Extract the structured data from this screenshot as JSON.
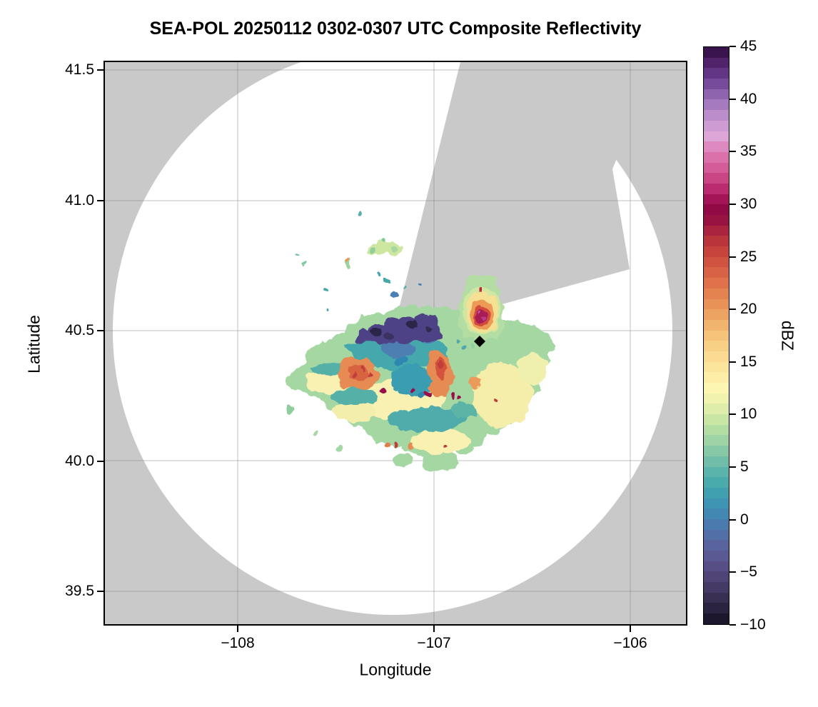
{
  "title": "SEA-POL 20250112 0302-0307 UTC Composite Reflectivity",
  "axes": {
    "xlabel": "Longitude",
    "ylabel": "Latitude",
    "xticks": [
      {
        "v": -108,
        "label": "−108"
      },
      {
        "v": -107,
        "label": "−107"
      },
      {
        "v": -106,
        "label": "−106"
      }
    ],
    "yticks": [
      {
        "v": 41.5,
        "label": "41.5"
      },
      {
        "v": 41.0,
        "label": "41.0"
      },
      {
        "v": 40.5,
        "label": "40.5"
      },
      {
        "v": 40.0,
        "label": "40.0"
      },
      {
        "v": 39.5,
        "label": "39.5"
      }
    ],
    "xlim": [
      -108.69,
      -105.69
    ],
    "ylim": [
      39.37,
      41.54
    ],
    "grid": true
  },
  "colorbar": {
    "label": "dBZ",
    "vmin": -10,
    "vmax": 45,
    "band_step": 1,
    "ticks": [
      {
        "v": 45,
        "label": "45"
      },
      {
        "v": 40,
        "label": "40"
      },
      {
        "v": 35,
        "label": "35"
      },
      {
        "v": 30,
        "label": "30"
      },
      {
        "v": 25,
        "label": "25"
      },
      {
        "v": 20,
        "label": "20"
      },
      {
        "v": 15,
        "label": "15"
      },
      {
        "v": 10,
        "label": "10"
      },
      {
        "v": 5,
        "label": "5"
      },
      {
        "v": 0,
        "label": "0"
      },
      {
        "v": -5,
        "label": "−5"
      },
      {
        "v": -10,
        "label": "−10"
      }
    ],
    "anchors": [
      [
        45,
        "#2d0d3c"
      ],
      [
        44,
        "#471a5e"
      ],
      [
        42,
        "#6b3e92"
      ],
      [
        40,
        "#9a70b8"
      ],
      [
        38,
        "#c697d0"
      ],
      [
        36.5,
        "#dda6d6"
      ],
      [
        35,
        "#de7bb4"
      ],
      [
        33,
        "#d0518e"
      ],
      [
        31,
        "#b22064"
      ],
      [
        30,
        "#96094a"
      ],
      [
        29,
        "#8c0a42"
      ],
      [
        28,
        "#a31c40"
      ],
      [
        26,
        "#c13c3a"
      ],
      [
        24,
        "#d55a43"
      ],
      [
        22,
        "#e27a4c"
      ],
      [
        20,
        "#eb9a5c"
      ],
      [
        18,
        "#f3bc74"
      ],
      [
        16,
        "#f9d68b"
      ],
      [
        14,
        "#fc(e)aa2"
      ],
      [
        12.5,
        "#fdf6b2"
      ],
      [
        11,
        "#e8f1ac"
      ],
      [
        9,
        "#bfe2a2"
      ],
      [
        7,
        "#93cea6"
      ],
      [
        5,
        "#64b9aa"
      ],
      [
        3,
        "#41a6ae"
      ],
      [
        1,
        "#3e8eb4"
      ],
      [
        -1,
        "#4f74ac"
      ],
      [
        -3,
        "#5c5f9a"
      ],
      [
        -5,
        "#55487e"
      ],
      [
        -7,
        "#3f355c"
      ],
      [
        -9,
        "#241e38"
      ],
      [
        -10,
        "#14101f"
      ]
    ],
    "no_data_color": "#c9c9c9"
  },
  "chart_data": {
    "type": "heatmap",
    "title": "SEA-POL 20250112 0302-0307 UTC Composite Reflectivity",
    "xlabel": "Longitude",
    "ylabel": "Latitude",
    "xlim": [
      -108.69,
      -105.69
    ],
    "ylim": [
      39.37,
      41.54
    ],
    "units": "dBZ",
    "value_range": [
      -10,
      45
    ],
    "radar": {
      "name": "SEA-POL",
      "center_lon": -107.2,
      "center_lat": 40.49,
      "range_lon_deg": 1.43,
      "range_lat_deg": 1.08,
      "blocked_sector_azimuth_deg": [
        13,
        53
      ],
      "no_data_shading": "gray outside range ring and inside blocked sector",
      "clear_air": "white inside range ring"
    },
    "features": [
      {
        "name": "main-precip-area",
        "lon_range": [
          -107.76,
          -106.4
        ],
        "lat_range": [
          40.08,
          40.56
        ],
        "typical_dbz": 10,
        "max_dbz": 30,
        "notes": "broad stratiform region, mostly 8-18 dBZ greens/yellows with teal 2-6 dBZ core band"
      },
      {
        "name": "low-dbz-arc",
        "lon_center": -107.1,
        "lat_center": 40.47,
        "typical_dbz": -4,
        "notes": "dark indigo scalloped band of -8 to 0 dBZ along north edge of main area"
      },
      {
        "name": "west-embedded-cell",
        "lon_center": -107.45,
        "lat_center": 40.32,
        "max_dbz": 26
      },
      {
        "name": "central-embedded-cell",
        "lon_center": -107.03,
        "lat_center": 40.36,
        "max_dbz": 27
      },
      {
        "name": "northeast-cell",
        "lon_center": -106.78,
        "lat_center": 40.55,
        "max_dbz": 34,
        "notes": "isolated convective cell, crimson/magenta core"
      },
      {
        "name": "scattered-echoes-north",
        "lon_range": [
          -107.4,
          -106.95
        ],
        "lat_range": [
          40.6,
          40.85
        ],
        "typical_dbz": 8
      }
    ],
    "marker": {
      "shape": "diamond",
      "color": "#000000",
      "lon": -106.76,
      "lat": 40.46
    }
  },
  "icons": {
    "site_marker": "black-diamond"
  }
}
